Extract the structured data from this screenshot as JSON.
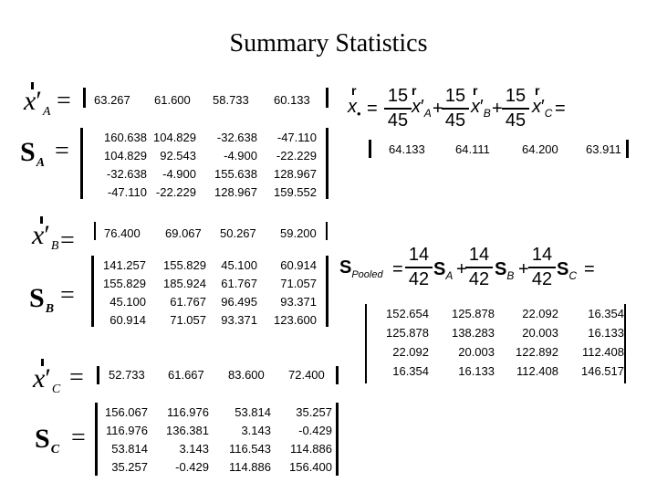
{
  "title": "Summary Statistics",
  "group_a": {
    "mean_label": "x",
    "mean_sub": "A",
    "mean": [
      "63.267",
      "61.600",
      "58.733",
      "60.133"
    ],
    "cov_label": "S",
    "cov_sub": "A",
    "cov": [
      [
        "160.638",
        "104.829",
        "-32.638",
        "-47.110"
      ],
      [
        "104.829",
        "92.543",
        "-4.900",
        "-22.229"
      ],
      [
        "-32.638",
        "-4.900",
        "155.638",
        "128.967"
      ],
      [
        "-47.110",
        "-22.229",
        "128.967",
        "159.552"
      ]
    ]
  },
  "group_b": {
    "mean_label": "x",
    "mean_sub": "B",
    "mean": [
      "76.400",
      "69.067",
      "50.267",
      "59.200"
    ],
    "cov_label": "S",
    "cov_sub": "B",
    "cov": [
      [
        "141.257",
        "155.829",
        "45.100",
        "60.914"
      ],
      [
        "155.829",
        "185.924",
        "61.767",
        "71.057"
      ],
      [
        "45.100",
        "61.767",
        "96.495",
        "93.371"
      ],
      [
        "60.914",
        "71.057",
        "93.371",
        "123.600"
      ]
    ]
  },
  "group_c": {
    "mean_label": "x",
    "mean_sub": "C",
    "mean": [
      "52.733",
      "61.667",
      "83.600",
      "72.400"
    ],
    "cov_label": "S",
    "cov_sub": "C",
    "cov": [
      [
        "156.067",
        "116.976",
        "53.814",
        "35.257"
      ],
      [
        "116.976",
        "136.381",
        "3.143",
        "-0.429"
      ],
      [
        "53.814",
        "3.143",
        "116.543",
        "114.886"
      ],
      [
        "35.257",
        "-0.429",
        "114.886",
        "156.400"
      ]
    ]
  },
  "overall": {
    "label": "x",
    "sub": "•",
    "weight_num": "15",
    "weight_den": "45",
    "subs": [
      "A",
      "B",
      "C"
    ],
    "mean": [
      "64.133",
      "64.111",
      "64.200",
      "63.911"
    ]
  },
  "pooled": {
    "label": "S",
    "sub": "Pooled",
    "weight_num": "14",
    "weight_den": "42",
    "subs": [
      "A",
      "B",
      "C"
    ],
    "cov": [
      [
        "152.654",
        "125.878",
        "22.092",
        "16.354"
      ],
      [
        "125.878",
        "138.283",
        "20.003",
        "16.133"
      ],
      [
        "22.092",
        "20.003",
        "122.892",
        "112.408"
      ],
      [
        "16.354",
        "16.133",
        "112.408",
        "146.517"
      ]
    ]
  },
  "symbols": {
    "equals": "=",
    "plus": "+",
    "vector_mark": "r",
    "prime": "′"
  }
}
